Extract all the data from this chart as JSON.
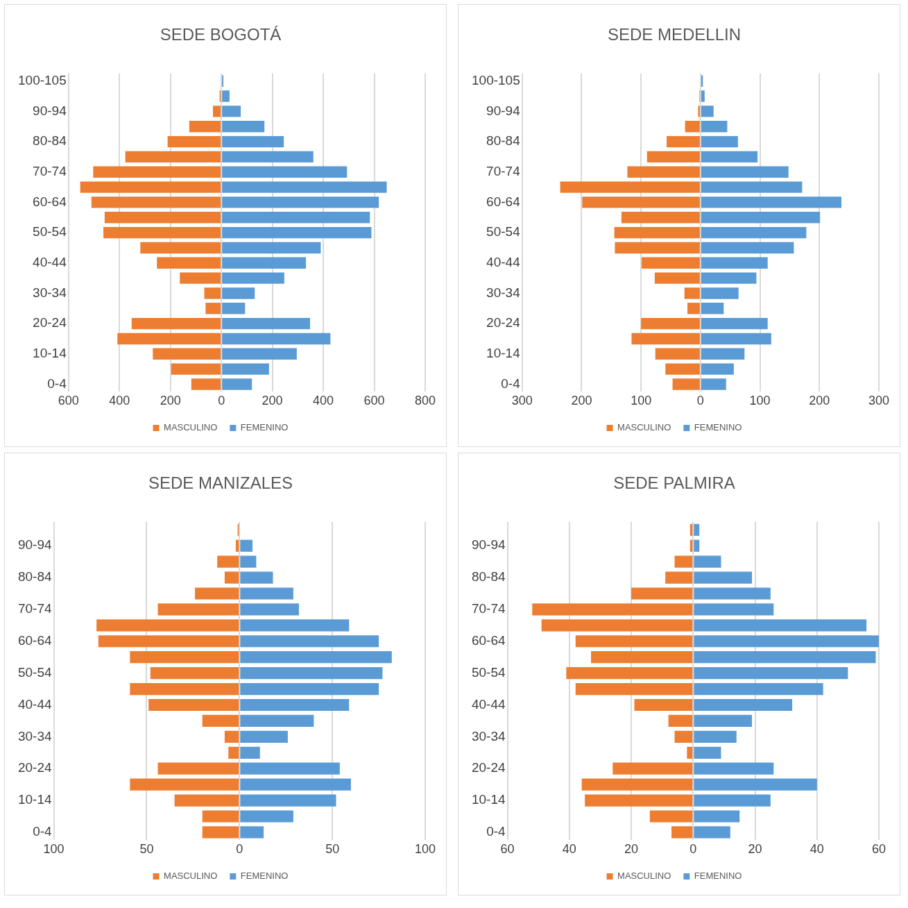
{
  "chart_data": [
    {
      "type": "bar",
      "title": "SEDE BOGOTÁ",
      "orientation": "horizontal",
      "stacked": true,
      "grid": "x",
      "legend": "bottom",
      "categories": [
        "100-105",
        null,
        "90-94",
        null,
        "80-84",
        null,
        "70-74",
        null,
        "60-64",
        null,
        "50-54",
        null,
        "40-44",
        null,
        "30-34",
        null,
        "20-24",
        null,
        "10-14",
        null,
        "0-4"
      ],
      "xlim": [
        -600,
        800
      ],
      "xticks": [
        {
          "value": -600,
          "label": "600"
        },
        {
          "value": -400,
          "label": "400"
        },
        {
          "value": -200,
          "label": "200"
        },
        0,
        200,
        400,
        600,
        800
      ],
      "series": [
        {
          "name": "MASCULINO",
          "color": "#ed7d31",
          "values": [
            null,
            -7,
            -33,
            -126,
            -211,
            -377,
            -503,
            -554,
            -510,
            -458,
            -463,
            -318,
            -253,
            -163,
            -67,
            -62,
            -352,
            -408,
            -269,
            -197,
            -118
          ]
        },
        {
          "name": "FEMENINO",
          "color": "#5b9bd5",
          "values": [
            8,
            32,
            76,
            169,
            245,
            361,
            493,
            649,
            618,
            583,
            589,
            390,
            332,
            247,
            131,
            93,
            348,
            428,
            296,
            187,
            120
          ]
        }
      ]
    },
    {
      "type": "bar",
      "title": "SEDE MEDELLIN",
      "orientation": "horizontal",
      "stacked": true,
      "grid": "x",
      "legend": "bottom",
      "categories": [
        "100-105",
        null,
        "90-94",
        null,
        "80-84",
        null,
        "70-74",
        null,
        "60-64",
        null,
        "50-54",
        null,
        "40-44",
        null,
        "30-34",
        null,
        "20-24",
        null,
        "10-14",
        null,
        "0-4"
      ],
      "xlim": [
        -300,
        300
      ],
      "xticks": [
        {
          "value": -300,
          "label": "300"
        },
        {
          "value": -200,
          "label": "200"
        },
        {
          "value": -100,
          "label": "100"
        },
        0,
        100,
        200,
        300
      ],
      "series": [
        {
          "name": "MASCULINO",
          "color": "#ed7d31",
          "values": [
            null,
            -2,
            -4,
            -26,
            -57,
            -90,
            -123,
            -236,
            -199,
            -133,
            -145,
            -144,
            -99,
            -77,
            -27,
            -22,
            -100,
            -116,
            -76,
            -59,
            -47
          ]
        },
        {
          "name": "FEMENINO",
          "color": "#5b9bd5",
          "values": [
            4,
            7,
            22,
            45,
            63,
            96,
            148,
            171,
            237,
            201,
            178,
            157,
            113,
            94,
            64,
            39,
            113,
            119,
            74,
            56,
            43
          ]
        }
      ]
    },
    {
      "type": "bar",
      "title": "SEDE MANIZALES",
      "orientation": "horizontal",
      "stacked": true,
      "grid": "x",
      "legend": "bottom",
      "categories": [
        null,
        "90-94",
        null,
        "80-84",
        null,
        "70-74",
        null,
        "60-64",
        null,
        "50-54",
        null,
        "40-44",
        null,
        "30-34",
        null,
        "20-24",
        null,
        "10-14",
        null,
        "0-4"
      ],
      "xlim": [
        -100,
        100
      ],
      "xticks": [
        {
          "value": -100,
          "label": "100"
        },
        {
          "value": -50,
          "label": "50"
        },
        0,
        50,
        100
      ],
      "series": [
        {
          "name": "MASCULINO",
          "color": "#ed7d31",
          "values": [
            -1,
            -2,
            -12,
            -8,
            -24,
            -44,
            -77,
            -76,
            -59,
            -48,
            -59,
            -49,
            -20,
            -8,
            -6,
            -44,
            -59,
            -35,
            -20,
            -20
          ]
        },
        {
          "name": "FEMENINO",
          "color": "#5b9bd5",
          "values": [
            0,
            7,
            9,
            18,
            29,
            32,
            59,
            75,
            82,
            77,
            75,
            59,
            40,
            26,
            11,
            54,
            60,
            52,
            29,
            13
          ]
        }
      ]
    },
    {
      "type": "bar",
      "title": "SEDE PALMIRA",
      "orientation": "horizontal",
      "stacked": true,
      "grid": "x",
      "legend": "bottom",
      "categories": [
        null,
        "90-94",
        null,
        "80-84",
        null,
        "70-74",
        null,
        "60-64",
        null,
        "50-54",
        null,
        "40-44",
        null,
        "30-34",
        null,
        "20-24",
        null,
        "10-14",
        null,
        "0-4"
      ],
      "xlim": [
        -60,
        60
      ],
      "xticks": [
        {
          "value": -60,
          "label": "60"
        },
        {
          "value": -40,
          "label": "40"
        },
        {
          "value": -20,
          "label": "20"
        },
        0,
        20,
        40,
        60
      ],
      "series": [
        {
          "name": "MASCULINO",
          "color": "#ed7d31",
          "values": [
            -1,
            -1,
            -6,
            -9,
            -20,
            -52,
            -49,
            -38,
            -33,
            -41,
            -38,
            -19,
            -8,
            -6,
            -2,
            -26,
            -36,
            -35,
            -14,
            -7
          ]
        },
        {
          "name": "FEMENINO",
          "color": "#5b9bd5",
          "values": [
            2,
            2,
            9,
            19,
            25,
            26,
            56,
            60,
            59,
            50,
            42,
            32,
            19,
            14,
            9,
            26,
            40,
            25,
            15,
            12
          ]
        }
      ]
    }
  ]
}
